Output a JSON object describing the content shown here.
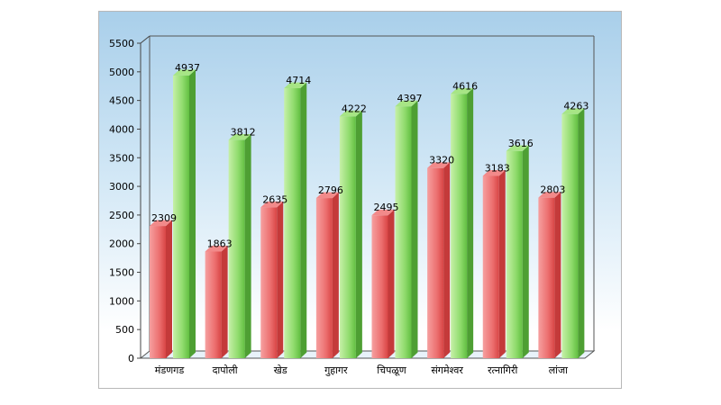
{
  "chart_data": {
    "type": "bar",
    "categories": [
      "मंडणगड",
      "दापोली",
      "खेड",
      "गुहागर",
      "चिपळूण",
      "संगमेश्वर",
      "रत्नागिरी",
      "लांजा"
    ],
    "series": [
      {
        "color": "#e85a5a",
        "values": [
          2309,
          1863,
          2635,
          2796,
          2495,
          3320,
          3183,
          2803
        ]
      },
      {
        "color": "#7fd45f",
        "values": [
          4937,
          3812,
          4714,
          4222,
          4397,
          4616,
          3616,
          4263
        ]
      }
    ],
    "ylim": [
      0,
      5500
    ],
    "yticks": [
      0,
      500,
      1000,
      1500,
      2000,
      2500,
      3000,
      3500,
      4000,
      4500,
      5000,
      5500
    ],
    "title": "",
    "xlabel": "",
    "ylabel": "",
    "grid": false,
    "style": "3d-bars"
  }
}
